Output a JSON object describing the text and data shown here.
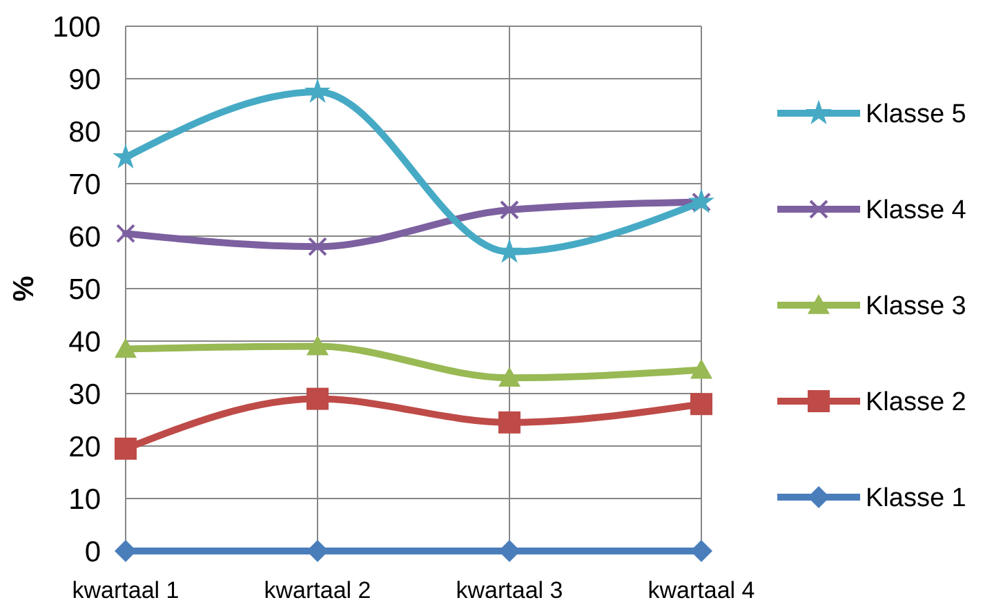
{
  "chart_data": {
    "type": "line",
    "ylabel": "%",
    "categories": [
      "kwartaal 1",
      "kwartaal 2",
      "kwartaal 3",
      "kwartaal 4"
    ],
    "ylim": [
      0,
      100
    ],
    "yticks": [
      0,
      10,
      20,
      30,
      40,
      50,
      60,
      70,
      80,
      90,
      100
    ],
    "grid": true,
    "legend": "right",
    "series": [
      {
        "name": "Klasse 1",
        "color": "#4a7ebb",
        "marker": "diamond",
        "values": [
          0,
          0,
          0,
          0
        ]
      },
      {
        "name": "Klasse 2",
        "color": "#be4b48",
        "marker": "square",
        "values": [
          19.5,
          29,
          24.5,
          28
        ]
      },
      {
        "name": "Klasse 3",
        "color": "#98b954",
        "marker": "triangle",
        "values": [
          38.5,
          39,
          33,
          34.5
        ]
      },
      {
        "name": "Klasse 4",
        "color": "#7d60a0",
        "marker": "cross",
        "values": [
          60.5,
          58,
          65,
          66.5
        ]
      },
      {
        "name": "Klasse 5",
        "color": "#46aac5",
        "marker": "star",
        "values": [
          75,
          87.5,
          57,
          66.5
        ]
      }
    ]
  }
}
